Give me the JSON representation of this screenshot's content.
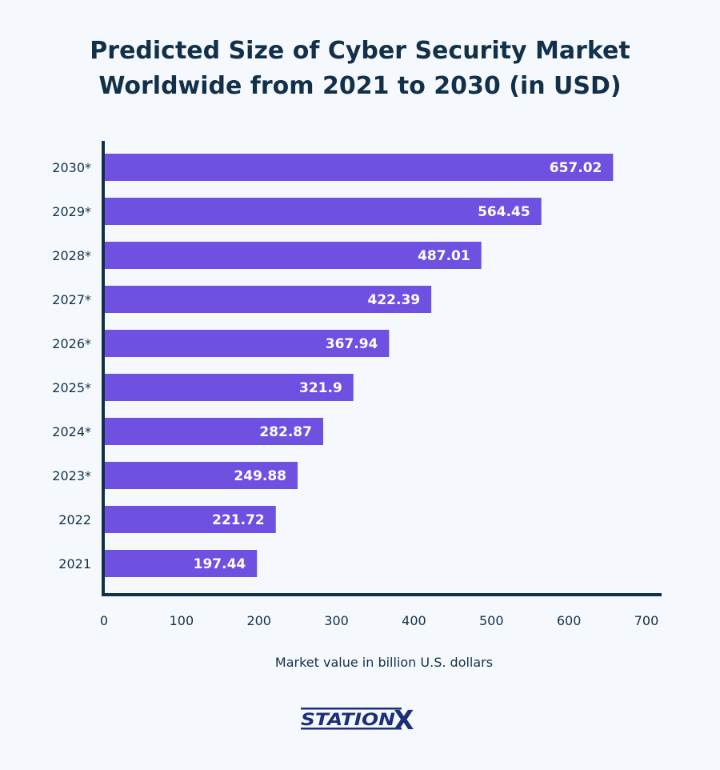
{
  "chart_data": {
    "type": "bar",
    "orientation": "horizontal",
    "title": "Predicted Size of Cyber Security Market Worldwide from 2021 to 2030 (in USD)",
    "xlabel": "Market value in billion U.S. dollars",
    "ylabel": "",
    "categories": [
      "2030*",
      "2029*",
      "2028*",
      "2027*",
      "2026*",
      "2025*",
      "2024*",
      "2023*",
      "2022",
      "2021"
    ],
    "values": [
      657.02,
      564.45,
      487.01,
      422.39,
      367.94,
      321.9,
      282.87,
      249.88,
      221.72,
      197.44
    ],
    "value_labels": [
      "657.02",
      "564.45",
      "487.01",
      "422.39",
      "367.94",
      "321.9",
      "282.87",
      "249.88",
      "221.72",
      "197.44"
    ],
    "xlim": [
      0,
      700
    ],
    "xticks": [
      "0",
      "100",
      "200",
      "300",
      "400",
      "500",
      "600",
      "700"
    ],
    "grid": false,
    "bar_color": "#6e51e0",
    "axis_color": "#12304a"
  },
  "logo": {
    "text": "STATIONX",
    "color": "#1b2f7a"
  }
}
